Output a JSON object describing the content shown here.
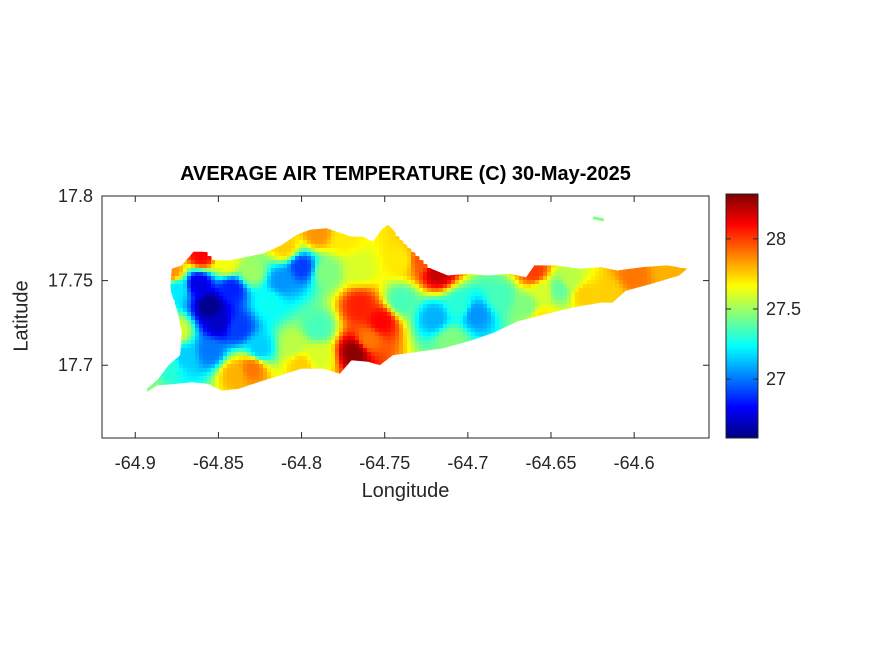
{
  "chart_data": {
    "type": "heatmap",
    "title": "AVERAGE AIR TEMPERATURE (C) 30-May-2025",
    "xlabel": "Longitude",
    "ylabel": "Latitude",
    "xlim": [
      -64.92,
      -64.555
    ],
    "ylim": [
      17.657,
      17.8
    ],
    "xticks": [
      -64.9,
      -64.85,
      -64.8,
      -64.75,
      -64.7,
      -64.65,
      -64.6
    ],
    "xtick_labels": [
      "-64.9",
      "-64.85",
      "-64.8",
      "-64.75",
      "-64.7",
      "-64.65",
      "-64.6"
    ],
    "yticks": [
      17.7,
      17.75,
      17.8
    ],
    "ytick_labels": [
      "17.7",
      "17.75",
      "17.8"
    ],
    "colorbar": {
      "colormap": "jet",
      "clim": [
        26.58,
        28.32
      ],
      "ticks": [
        27,
        27.5,
        28
      ],
      "tick_labels": [
        "27",
        "27.5",
        "28"
      ]
    },
    "outline": [
      [
        -64.9,
        17.679
      ],
      [
        -64.893,
        17.686
      ],
      [
        -64.886,
        17.692
      ],
      [
        -64.88,
        17.7
      ],
      [
        -64.873,
        17.706
      ],
      [
        -64.872,
        17.72
      ],
      [
        -64.875,
        17.733
      ],
      [
        -64.879,
        17.745
      ],
      [
        -64.878,
        17.757
      ],
      [
        -64.872,
        17.759
      ],
      [
        -64.865,
        17.767
      ],
      [
        -64.857,
        17.767
      ],
      [
        -64.852,
        17.762
      ],
      [
        -64.843,
        17.762
      ],
      [
        -64.833,
        17.764
      ],
      [
        -64.823,
        17.766
      ],
      [
        -64.812,
        17.771
      ],
      [
        -64.803,
        17.777
      ],
      [
        -64.795,
        17.78
      ],
      [
        -64.785,
        17.781
      ],
      [
        -64.776,
        17.778
      ],
      [
        -64.77,
        17.776
      ],
      [
        -64.763,
        17.776
      ],
      [
        -64.757,
        17.773
      ],
      [
        -64.752,
        17.78
      ],
      [
        -64.748,
        17.783
      ],
      [
        -64.745,
        17.78
      ],
      [
        -64.738,
        17.772
      ],
      [
        -64.728,
        17.763
      ],
      [
        -64.722,
        17.757
      ],
      [
        -64.712,
        17.753
      ],
      [
        -64.7,
        17.754
      ],
      [
        -64.688,
        17.753
      ],
      [
        -64.675,
        17.754
      ],
      [
        -64.665,
        17.752
      ],
      [
        -64.66,
        17.759
      ],
      [
        -64.647,
        17.759
      ],
      [
        -64.633,
        17.757
      ],
      [
        -64.62,
        17.758
      ],
      [
        -64.61,
        17.756
      ],
      [
        -64.595,
        17.758
      ],
      [
        -64.58,
        17.759
      ],
      [
        -64.568,
        17.757
      ],
      [
        -64.573,
        17.753
      ],
      [
        -64.59,
        17.748
      ],
      [
        -64.605,
        17.744
      ],
      [
        -64.613,
        17.737
      ],
      [
        -64.62,
        17.737
      ],
      [
        -64.632,
        17.735
      ],
      [
        -64.642,
        17.733
      ],
      [
        -64.658,
        17.729
      ],
      [
        -64.67,
        17.726
      ],
      [
        -64.685,
        17.719
      ],
      [
        -64.7,
        17.714
      ],
      [
        -64.715,
        17.71
      ],
      [
        -64.73,
        17.708
      ],
      [
        -64.745,
        17.706
      ],
      [
        -64.753,
        17.7
      ],
      [
        -64.76,
        17.702
      ],
      [
        -64.77,
        17.703
      ],
      [
        -64.777,
        17.695
      ],
      [
        -64.787,
        17.698
      ],
      [
        -64.8,
        17.698
      ],
      [
        -64.813,
        17.694
      ],
      [
        -64.826,
        17.69
      ],
      [
        -64.838,
        17.686
      ],
      [
        -64.848,
        17.685
      ],
      [
        -64.857,
        17.689
      ],
      [
        -64.866,
        17.69
      ],
      [
        -64.875,
        17.689
      ],
      [
        -64.887,
        17.688
      ],
      [
        -64.895,
        17.683
      ]
    ],
    "small_island": [
      [
        -64.624,
        17.787
      ],
      [
        -64.619,
        17.786
      ]
    ],
    "field_points": [
      [
        -64.855,
        17.735,
        26.6
      ],
      [
        -64.85,
        17.725,
        26.7
      ],
      [
        -64.862,
        17.748,
        26.75
      ],
      [
        -64.842,
        17.745,
        26.85
      ],
      [
        -64.838,
        17.722,
        26.9
      ],
      [
        -64.855,
        17.708,
        27.0
      ],
      [
        -64.8,
        17.758,
        26.9
      ],
      [
        -64.812,
        17.75,
        27.05
      ],
      [
        -64.875,
        17.745,
        27.2
      ],
      [
        -64.87,
        17.705,
        27.15
      ],
      [
        -64.82,
        17.737,
        27.25
      ],
      [
        -64.825,
        17.71,
        27.15
      ],
      [
        -64.79,
        17.722,
        27.35
      ],
      [
        -64.805,
        17.712,
        27.55
      ],
      [
        -64.785,
        17.755,
        27.45
      ],
      [
        -64.775,
        17.775,
        27.7
      ],
      [
        -64.765,
        17.757,
        27.6
      ],
      [
        -64.765,
        17.735,
        28.05
      ],
      [
        -64.76,
        17.715,
        27.9
      ],
      [
        -64.768,
        17.708,
        28.3
      ],
      [
        -64.752,
        17.726,
        28.1
      ],
      [
        -64.74,
        17.762,
        27.7
      ],
      [
        -64.728,
        17.762,
        27.95
      ],
      [
        -64.718,
        17.755,
        28.2
      ],
      [
        -64.74,
        17.738,
        27.35
      ],
      [
        -64.72,
        17.728,
        27.1
      ],
      [
        -64.705,
        17.735,
        27.3
      ],
      [
        -64.695,
        17.73,
        27.05
      ],
      [
        -64.71,
        17.715,
        27.45
      ],
      [
        -64.68,
        17.74,
        27.35
      ],
      [
        -64.665,
        17.735,
        27.45
      ],
      [
        -64.655,
        17.744,
        27.6
      ],
      [
        -64.645,
        17.745,
        27.4
      ],
      [
        -64.638,
        17.75,
        27.55
      ],
      [
        -64.63,
        17.742,
        27.75
      ],
      [
        -64.615,
        17.742,
        27.75
      ],
      [
        -64.6,
        17.753,
        27.9
      ],
      [
        -64.58,
        17.755,
        27.8
      ],
      [
        -64.66,
        17.755,
        28.0
      ],
      [
        -64.655,
        17.728,
        27.7
      ],
      [
        -64.84,
        17.695,
        27.8
      ],
      [
        -64.83,
        17.698,
        27.9
      ],
      [
        -64.8,
        17.7,
        27.75
      ],
      [
        -64.79,
        17.705,
        27.6
      ],
      [
        -64.893,
        17.686,
        27.45
      ],
      [
        -64.88,
        17.7,
        27.3
      ],
      [
        -64.878,
        17.755,
        27.85
      ],
      [
        -64.86,
        17.765,
        28.1
      ],
      [
        -64.845,
        17.76,
        27.65
      ],
      [
        -64.83,
        17.755,
        27.5
      ],
      [
        -64.81,
        17.77,
        27.75
      ],
      [
        -64.79,
        17.778,
        27.85
      ],
      [
        -64.875,
        17.72,
        27.6
      ]
    ]
  }
}
